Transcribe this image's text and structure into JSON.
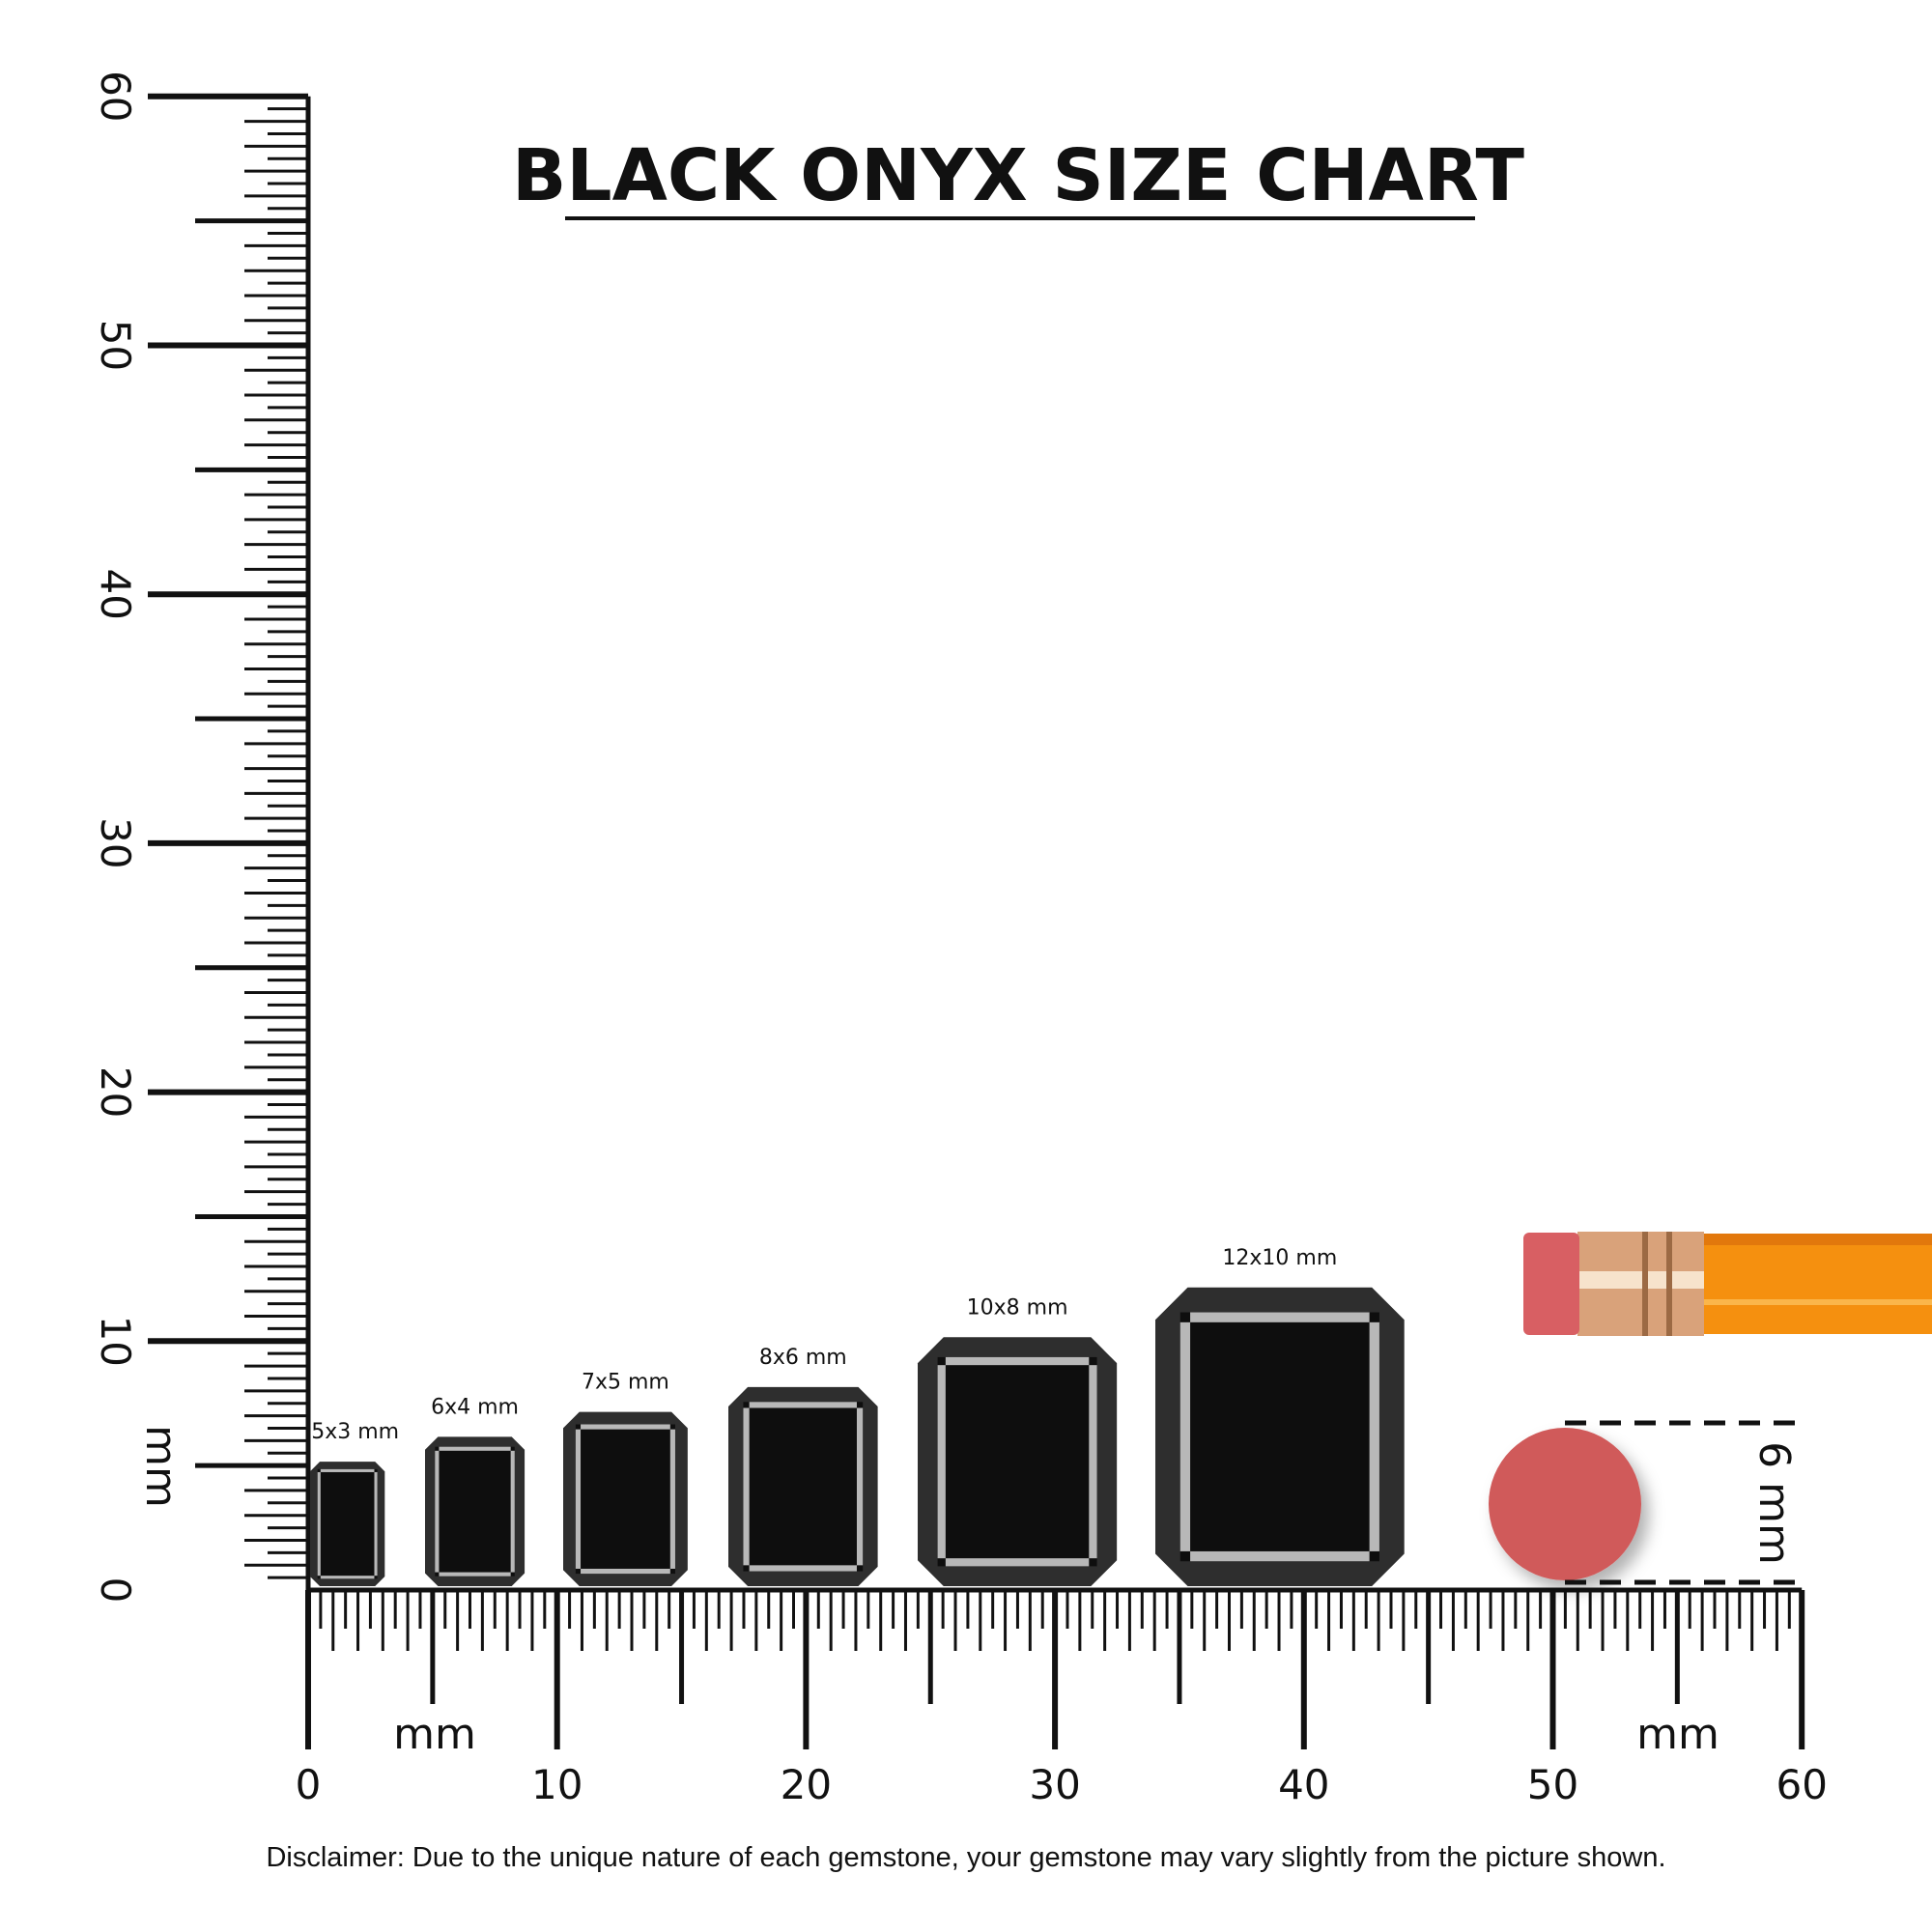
{
  "title": "BLACK ONYX SIZE CHART",
  "disclaimer": "Disclaimer: Due to the unique nature of each gemstone, your gemstone may vary slightly from the picture shown.",
  "ruler": {
    "unit_label": "mm",
    "range_mm": [
      0,
      60
    ],
    "major_labels": [
      "0",
      "10",
      "20",
      "30",
      "40",
      "50",
      "60"
    ]
  },
  "gems": [
    {
      "label": "5x3 mm",
      "length_mm": 5,
      "width_mm": 3
    },
    {
      "label": "6x4 mm",
      "length_mm": 6,
      "width_mm": 4
    },
    {
      "label": "7x5 mm",
      "length_mm": 7,
      "width_mm": 5
    },
    {
      "label": "8x6 mm",
      "length_mm": 8,
      "width_mm": 6
    },
    {
      "label": "10x8 mm",
      "length_mm": 10,
      "width_mm": 8
    },
    {
      "label": "12x10 mm",
      "length_mm": 12,
      "width_mm": 10
    }
  ],
  "reference": {
    "label": "6 mm",
    "diameter_mm": 6,
    "object": "pencil eraser"
  },
  "colors": {
    "gem_outer": "#2e2e2e",
    "gem_table": "#0e0e0e",
    "gem_highlight": "#b8b8b8",
    "eraser": "#d05a5a",
    "pencil": "#f5900f",
    "ferrule": "#d9a27a"
  }
}
